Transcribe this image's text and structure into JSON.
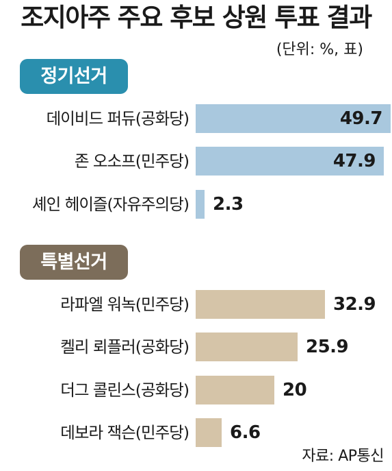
{
  "title": "조지아주 주요 후보 상원 투표 결과",
  "unit": "(단위: %, 표)",
  "source": "자료: AP통신",
  "colors": {
    "regular_pill": "#2a8fae",
    "regular_bar": "#a9c8de",
    "special_pill": "#7c6d5a",
    "special_bar": "#d5c4a8"
  },
  "chart_data": {
    "type": "bar",
    "orientation": "horizontal",
    "title": "조지아주 주요 후보 상원 투표 결과",
    "unit": "(단위: %, 표)",
    "groups": [
      {
        "name": "정기선거",
        "categories": [
          "데이비드 퍼듀(공화당)",
          "존 오소프(민주당)",
          "셰인 헤이즐(자유주의당)"
        ],
        "values": [
          49.7,
          47.9,
          2.3
        ],
        "labels": [
          "49.7",
          "47.9",
          "2.3"
        ]
      },
      {
        "name": "특별선거",
        "categories": [
          "라파엘 워녹(민주당)",
          "켈리 뢰플러(공화당)",
          "더그 콜린스(공화당)",
          "데보라 잭슨(민주당)"
        ],
        "values": [
          32.9,
          25.9,
          20,
          6.6
        ],
        "labels": [
          "32.9",
          "25.9",
          "20",
          "6.6"
        ]
      }
    ],
    "xlim": [
      0,
      49.7
    ],
    "grid": false,
    "legend": "none"
  }
}
